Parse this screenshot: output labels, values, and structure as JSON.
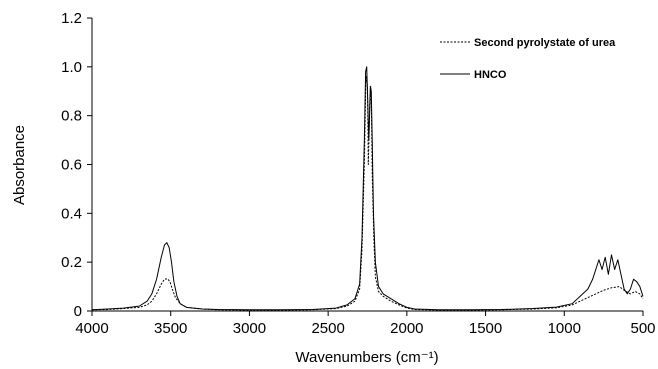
{
  "chart_data": {
    "type": "line",
    "xlabel": "Wavenumbers (cm⁻¹)",
    "ylabel": "Absorbance",
    "xlim": [
      4000,
      500
    ],
    "ylim": [
      0,
      1.2
    ],
    "x_ticks": [
      "4000",
      "3500",
      "3000",
      "2500",
      "2000",
      "1500",
      "1000",
      "500"
    ],
    "y_ticks": [
      "0",
      "0.2",
      "0.4",
      "0.6",
      "0.8",
      "1.0",
      "1.2"
    ],
    "x_axis_reversed": true,
    "grid": false,
    "legend_position": "top-right",
    "series": [
      {
        "name": "Second pyrolystate of urea",
        "style": "dotted",
        "color": "#000000",
        "points": [
          [
            4000,
            0.005
          ],
          [
            3900,
            0.006
          ],
          [
            3800,
            0.01
          ],
          [
            3700,
            0.015
          ],
          [
            3650,
            0.025
          ],
          [
            3620,
            0.04
          ],
          [
            3590,
            0.07
          ],
          [
            3560,
            0.11
          ],
          [
            3540,
            0.13
          ],
          [
            3520,
            0.132
          ],
          [
            3505,
            0.12
          ],
          [
            3490,
            0.09
          ],
          [
            3470,
            0.055
          ],
          [
            3440,
            0.03
          ],
          [
            3400,
            0.015
          ],
          [
            3300,
            0.008
          ],
          [
            3200,
            0.005
          ],
          [
            3000,
            0.004
          ],
          [
            2800,
            0.004
          ],
          [
            2600,
            0.005
          ],
          [
            2450,
            0.01
          ],
          [
            2380,
            0.02
          ],
          [
            2330,
            0.04
          ],
          [
            2300,
            0.09
          ],
          [
            2285,
            0.25
          ],
          [
            2270,
            0.6
          ],
          [
            2260,
            0.96
          ],
          [
            2250,
            0.92
          ],
          [
            2245,
            0.6
          ],
          [
            2240,
            0.72
          ],
          [
            2235,
            0.86
          ],
          [
            2230,
            0.92
          ],
          [
            2225,
            0.82
          ],
          [
            2220,
            0.56
          ],
          [
            2210,
            0.3
          ],
          [
            2200,
            0.14
          ],
          [
            2180,
            0.08
          ],
          [
            2150,
            0.06
          ],
          [
            2100,
            0.04
          ],
          [
            2050,
            0.025
          ],
          [
            2000,
            0.012
          ],
          [
            1950,
            0.006
          ],
          [
            1800,
            0.004
          ],
          [
            1600,
            0.004
          ],
          [
            1400,
            0.005
          ],
          [
            1200,
            0.008
          ],
          [
            1050,
            0.013
          ],
          [
            950,
            0.025
          ],
          [
            900,
            0.04
          ],
          [
            850,
            0.055
          ],
          [
            800,
            0.07
          ],
          [
            750,
            0.085
          ],
          [
            700,
            0.095
          ],
          [
            650,
            0.1
          ],
          [
            620,
            0.085
          ],
          [
            580,
            0.07
          ],
          [
            550,
            0.08
          ],
          [
            520,
            0.07
          ],
          [
            500,
            0.05
          ]
        ]
      },
      {
        "name": "HNCO",
        "style": "solid",
        "color": "#000000",
        "points": [
          [
            4000,
            0.005
          ],
          [
            3900,
            0.008
          ],
          [
            3800,
            0.012
          ],
          [
            3700,
            0.02
          ],
          [
            3650,
            0.04
          ],
          [
            3620,
            0.07
          ],
          [
            3590,
            0.13
          ],
          [
            3560,
            0.22
          ],
          [
            3540,
            0.27
          ],
          [
            3525,
            0.28
          ],
          [
            3510,
            0.26
          ],
          [
            3495,
            0.2
          ],
          [
            3480,
            0.12
          ],
          [
            3460,
            0.06
          ],
          [
            3440,
            0.03
          ],
          [
            3400,
            0.015
          ],
          [
            3300,
            0.008
          ],
          [
            3200,
            0.006
          ],
          [
            3000,
            0.005
          ],
          [
            2800,
            0.005
          ],
          [
            2600,
            0.006
          ],
          [
            2450,
            0.012
          ],
          [
            2380,
            0.025
          ],
          [
            2330,
            0.05
          ],
          [
            2300,
            0.11
          ],
          [
            2285,
            0.3
          ],
          [
            2270,
            0.7
          ],
          [
            2262,
            0.98
          ],
          [
            2255,
            1.0
          ],
          [
            2248,
            0.85
          ],
          [
            2242,
            0.7
          ],
          [
            2237,
            0.8
          ],
          [
            2232,
            0.92
          ],
          [
            2226,
            0.9
          ],
          [
            2220,
            0.7
          ],
          [
            2212,
            0.4
          ],
          [
            2200,
            0.2
          ],
          [
            2180,
            0.1
          ],
          [
            2150,
            0.07
          ],
          [
            2100,
            0.05
          ],
          [
            2050,
            0.03
          ],
          [
            2000,
            0.015
          ],
          [
            1950,
            0.008
          ],
          [
            1800,
            0.005
          ],
          [
            1600,
            0.005
          ],
          [
            1400,
            0.006
          ],
          [
            1200,
            0.01
          ],
          [
            1050,
            0.016
          ],
          [
            950,
            0.03
          ],
          [
            900,
            0.06
          ],
          [
            850,
            0.09
          ],
          [
            820,
            0.13
          ],
          [
            800,
            0.17
          ],
          [
            780,
            0.21
          ],
          [
            760,
            0.17
          ],
          [
            740,
            0.22
          ],
          [
            720,
            0.15
          ],
          [
            700,
            0.23
          ],
          [
            680,
            0.17
          ],
          [
            660,
            0.21
          ],
          [
            640,
            0.15
          ],
          [
            620,
            0.09
          ],
          [
            600,
            0.07
          ],
          [
            580,
            0.09
          ],
          [
            560,
            0.13
          ],
          [
            540,
            0.12
          ],
          [
            520,
            0.1
          ],
          [
            500,
            0.06
          ]
        ]
      }
    ]
  }
}
